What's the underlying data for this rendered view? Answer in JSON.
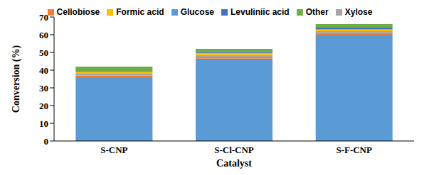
{
  "chart_data": {
    "type": "bar",
    "stacked": true,
    "x_label": "Catalyst",
    "y_label": "Conversion (%)",
    "categories": [
      "S-CNP",
      "S-Cl-CNP",
      "S-F-CNP"
    ],
    "series": [
      {
        "name": "Glucose",
        "color": "#5b9bd5",
        "values": [
          36,
          46.5,
          60
        ]
      },
      {
        "name": "Cellobiose",
        "color": "#ed7d31",
        "values": [
          1,
          1,
          1
        ]
      },
      {
        "name": "Xylose",
        "color": "#a5a5a5",
        "values": [
          1,
          1,
          1
        ]
      },
      {
        "name": "Formic acid",
        "color": "#ffc000",
        "values": [
          1,
          1,
          1
        ]
      },
      {
        "name": "Levuliniic acid",
        "color": "#4472c4",
        "values": [
          0.5,
          0.7,
          1
        ]
      },
      {
        "name": "Other",
        "color": "#70ad47",
        "values": [
          2.5,
          1.8,
          2
        ]
      }
    ],
    "ylim": [
      0,
      70
    ],
    "yticks": [
      0,
      10,
      20,
      30,
      40,
      50,
      60,
      70
    ],
    "grid": false,
    "legend": "top"
  }
}
